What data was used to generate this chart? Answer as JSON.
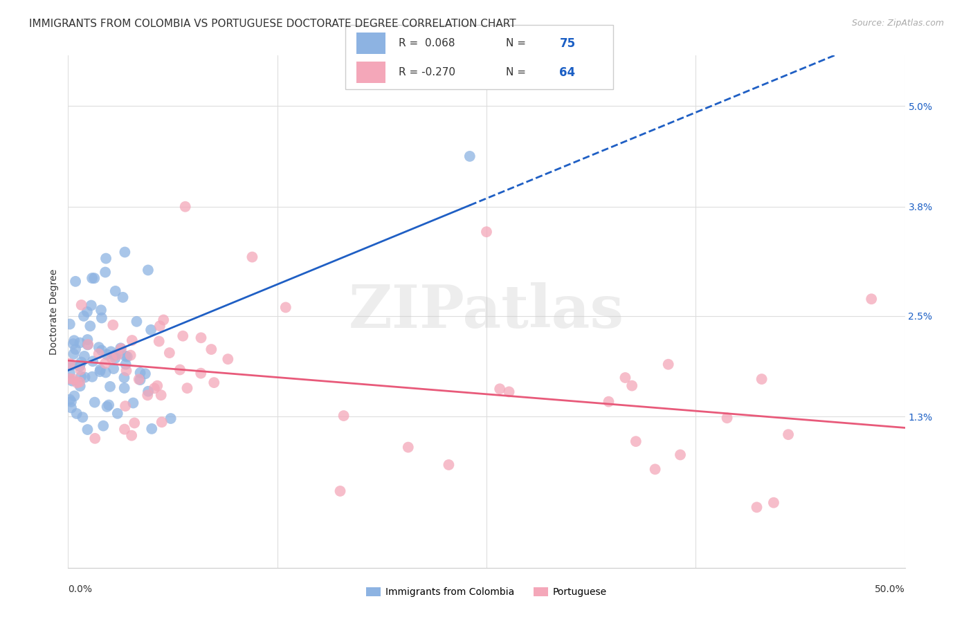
{
  "title": "IMMIGRANTS FROM COLOMBIA VS PORTUGUESE DOCTORATE DEGREE CORRELATION CHART",
  "source": "Source: ZipAtlas.com",
  "ylabel": "Doctorate Degree",
  "yticks": [
    0.013,
    0.025,
    0.038,
    0.05
  ],
  "ytick_labels": [
    "1.3%",
    "2.5%",
    "3.8%",
    "5.0%"
  ],
  "xlim": [
    0.0,
    0.5
  ],
  "ylim": [
    -0.005,
    0.056
  ],
  "series1_label": "Immigrants from Colombia",
  "series1_color": "#8db3e2",
  "series1_R": 0.068,
  "series1_N": 75,
  "series2_label": "Portuguese",
  "series2_color": "#f4a7b9",
  "series2_R": -0.27,
  "series2_N": 64,
  "line1_color": "#1f5fc4",
  "line2_color": "#e85a7a",
  "watermark": "ZIPatlas",
  "background_color": "#ffffff",
  "grid_color": "#dddddd",
  "title_fontsize": 11,
  "axis_label_fontsize": 10,
  "tick_fontsize": 10
}
